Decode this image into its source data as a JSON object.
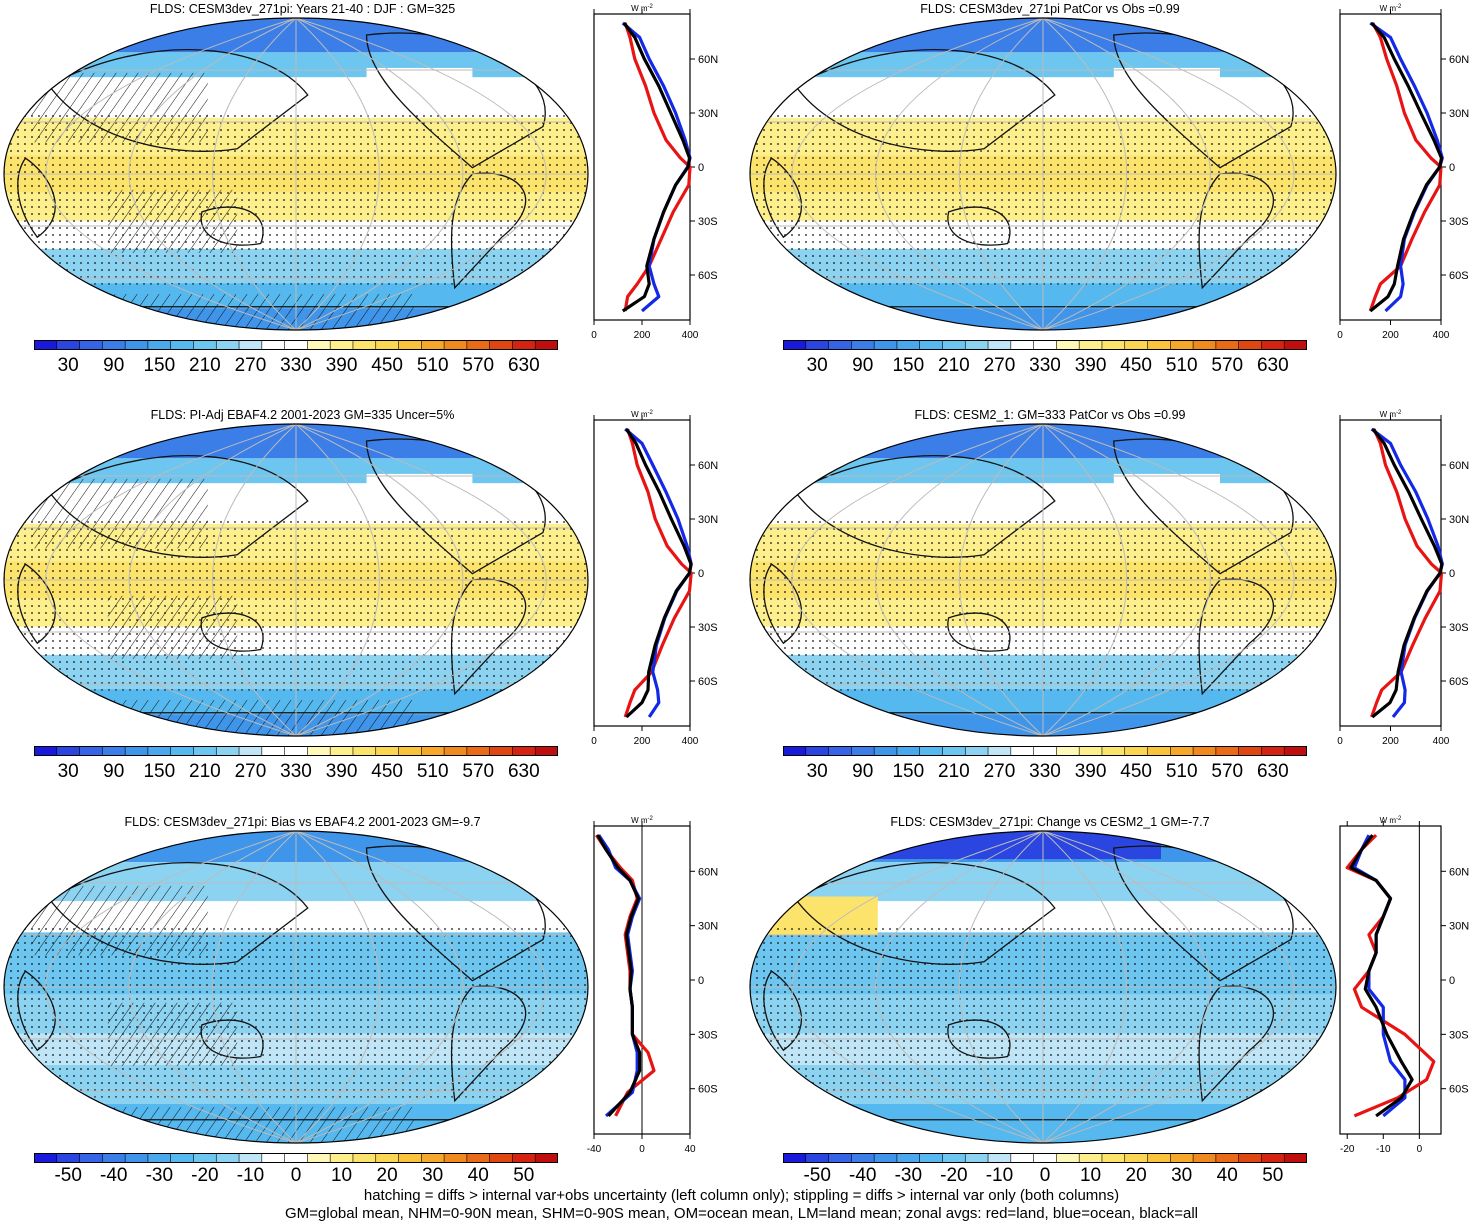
{
  "panels": [
    {
      "id": "p1",
      "title": "FLDS: CESM3dev_271pi: Years 21-40 : DJF : GM=325",
      "type": "abs",
      "hatch": true
    },
    {
      "id": "p2",
      "title": "FLDS: CESM3dev_271pi PatCor vs Obs =0.99",
      "type": "abs",
      "hatch": false
    },
    {
      "id": "p3",
      "title": "FLDS: PI-Adj EBAF4.2 2001-2023 GM=335 Uncer=5%",
      "type": "abs",
      "hatch": true
    },
    {
      "id": "p4",
      "title": "FLDS: CESM2_1: GM=333 PatCor vs Obs =0.99",
      "type": "abs",
      "hatch": false
    },
    {
      "id": "p5",
      "title": "FLDS: CESM3dev_271pi: Bias vs EBAF4.2 2001-2023 GM=-9.7",
      "type": "diff",
      "hatch": true
    },
    {
      "id": "p6",
      "title": "FLDS: CESM3dev_271pi: Change vs CESM2_1 GM=-7.7",
      "type": "diff",
      "hatch": false
    }
  ],
  "colorbars": {
    "abs_labels": [
      "30",
      "90",
      "150",
      "210",
      "270",
      "330",
      "390",
      "450",
      "510",
      "570",
      "630"
    ],
    "diff_labels": [
      "-50",
      "-40",
      "-30",
      "-20",
      "-10",
      "0",
      "10",
      "20",
      "30",
      "40",
      "50"
    ],
    "colors": [
      "#1a1adc",
      "#2a45e0",
      "#3565e6",
      "#3c7ee8",
      "#3f95ea",
      "#49a9ec",
      "#55b8ee",
      "#6cc6f0",
      "#8cd3f2",
      "#bfe5f6",
      "#ffffff",
      "#ffffff",
      "#fef9b8",
      "#fdef8c",
      "#fce46c",
      "#fbd653",
      "#f9c43b",
      "#f5a82a",
      "#f08a1f",
      "#e96a17",
      "#e04612",
      "#d42310",
      "#c00d0d"
    ]
  },
  "chart_data": [
    {
      "type": "line",
      "panel": "p1",
      "xlim": [
        0,
        400
      ],
      "xticks": [
        "0",
        "200",
        "400"
      ],
      "yticks": [
        "60N",
        "30N",
        "0",
        "30S",
        "60S"
      ],
      "unit": "W m-2",
      "series": [
        {
          "name": "red",
          "color": "#e81414",
          "x": [
            130,
            150,
            170,
            215,
            250,
            300,
            360,
            400,
            395,
            330,
            280,
            230,
            180,
            140,
            130
          ],
          "y": [
            80,
            72,
            60,
            45,
            30,
            15,
            5,
            0,
            -10,
            -25,
            -40,
            -55,
            -65,
            -72,
            -80
          ]
        },
        {
          "name": "blue",
          "color": "#1428e8",
          "x": [
            120,
            190,
            230,
            290,
            340,
            380,
            400,
            390,
            340,
            290,
            250,
            230,
            250,
            270,
            200
          ],
          "y": [
            80,
            72,
            60,
            45,
            30,
            15,
            5,
            0,
            -10,
            -25,
            -40,
            -55,
            -65,
            -72,
            -80
          ]
        },
        {
          "name": "black",
          "color": "#000000",
          "x": [
            125,
            170,
            210,
            270,
            320,
            370,
            398,
            392,
            340,
            290,
            250,
            220,
            230,
            210,
            120
          ],
          "y": [
            80,
            72,
            60,
            45,
            30,
            15,
            5,
            0,
            -10,
            -25,
            -40,
            -55,
            -65,
            -72,
            -80
          ]
        }
      ]
    },
    {
      "type": "line",
      "panel": "p2",
      "xlim": [
        0,
        400
      ],
      "xticks": [
        "0",
        "200",
        "400"
      ],
      "yticks": [
        "60N",
        "30N",
        "0",
        "30S",
        "60S"
      ],
      "unit": "W m-2",
      "series": [
        {
          "name": "red",
          "color": "#e81414",
          "x": [
            130,
            160,
            185,
            225,
            255,
            300,
            360,
            400,
            395,
            335,
            285,
            240,
            160,
            140,
            120
          ],
          "y": [
            80,
            72,
            60,
            45,
            30,
            15,
            5,
            0,
            -10,
            -25,
            -40,
            -55,
            -65,
            -72,
            -80
          ]
        },
        {
          "name": "blue",
          "color": "#1428e8",
          "x": [
            120,
            200,
            240,
            295,
            345,
            385,
            405,
            395,
            345,
            295,
            255,
            240,
            250,
            240,
            180
          ],
          "y": [
            80,
            72,
            60,
            45,
            30,
            15,
            5,
            0,
            -10,
            -25,
            -40,
            -55,
            -65,
            -72,
            -80
          ]
        },
        {
          "name": "black",
          "color": "#000000",
          "x": [
            125,
            175,
            215,
            270,
            320,
            372,
            402,
            395,
            342,
            292,
            252,
            228,
            215,
            190,
            120
          ],
          "y": [
            80,
            72,
            60,
            45,
            30,
            15,
            5,
            0,
            -10,
            -25,
            -40,
            -55,
            -65,
            -72,
            -80
          ]
        }
      ]
    },
    {
      "type": "line",
      "panel": "p3",
      "xlim": [
        0,
        400
      ],
      "xticks": [
        "0",
        "200",
        "400"
      ],
      "yticks": [
        "60N",
        "30N",
        "0",
        "30S",
        "60S"
      ],
      "unit": "W m-2",
      "series": [
        {
          "name": "red",
          "color": "#e81414",
          "x": [
            140,
            160,
            180,
            225,
            255,
            305,
            365,
            405,
            398,
            335,
            285,
            240,
            170,
            150,
            130
          ],
          "y": [
            80,
            72,
            60,
            45,
            30,
            15,
            5,
            0,
            -10,
            -25,
            -40,
            -55,
            -65,
            -72,
            -80
          ]
        },
        {
          "name": "blue",
          "color": "#1428e8",
          "x": [
            130,
            200,
            245,
            300,
            350,
            388,
            405,
            398,
            345,
            295,
            260,
            245,
            265,
            270,
            230
          ],
          "y": [
            80,
            72,
            60,
            45,
            30,
            15,
            5,
            0,
            -10,
            -25,
            -40,
            -55,
            -65,
            -72,
            -80
          ]
        },
        {
          "name": "black",
          "color": "#000000",
          "x": [
            135,
            175,
            215,
            272,
            322,
            375,
            404,
            398,
            343,
            293,
            255,
            228,
            225,
            200,
            135
          ],
          "y": [
            80,
            72,
            60,
            45,
            30,
            15,
            5,
            0,
            -10,
            -25,
            -40,
            -55,
            -65,
            -72,
            -80
          ]
        }
      ]
    },
    {
      "type": "line",
      "panel": "p4",
      "xlim": [
        0,
        400
      ],
      "xticks": [
        "0",
        "200",
        "400"
      ],
      "yticks": [
        "60N",
        "30N",
        "0",
        "30S",
        "60S"
      ],
      "unit": "W m-2",
      "series": [
        {
          "name": "red",
          "color": "#e81414",
          "x": [
            135,
            160,
            180,
            225,
            258,
            305,
            362,
            402,
            396,
            338,
            288,
            242,
            165,
            145,
            125
          ],
          "y": [
            80,
            72,
            60,
            45,
            30,
            15,
            5,
            0,
            -10,
            -25,
            -40,
            -55,
            -65,
            -72,
            -80
          ]
        },
        {
          "name": "blue",
          "color": "#1428e8",
          "x": [
            125,
            200,
            240,
            300,
            348,
            388,
            405,
            396,
            346,
            296,
            258,
            242,
            258,
            255,
            210
          ],
          "y": [
            80,
            72,
            60,
            45,
            30,
            15,
            5,
            0,
            -10,
            -25,
            -40,
            -55,
            -65,
            -72,
            -80
          ]
        },
        {
          "name": "black",
          "color": "#000000",
          "x": [
            130,
            175,
            215,
            272,
            322,
            374,
            403,
            397,
            344,
            294,
            254,
            230,
            222,
            198,
            128
          ],
          "y": [
            80,
            72,
            60,
            45,
            30,
            15,
            5,
            0,
            -10,
            -25,
            -40,
            -55,
            -65,
            -72,
            -80
          ]
        }
      ]
    },
    {
      "type": "line",
      "panel": "p5",
      "xlim": [
        -40,
        40
      ],
      "xticks": [
        "-40",
        "0",
        "40"
      ],
      "yticks": [
        "60N",
        "30N",
        "0",
        "30S",
        "60S"
      ],
      "unit": "W m-2",
      "series": [
        {
          "name": "red",
          "color": "#e81414",
          "x": [
            -38,
            -30,
            -18,
            -8,
            -4,
            -10,
            -14,
            -12,
            -10,
            -10,
            -8,
            -8,
            5,
            10,
            -12,
            -22
          ],
          "y": [
            80,
            72,
            62,
            55,
            45,
            35,
            25,
            15,
            5,
            -5,
            -15,
            -30,
            -40,
            -50,
            -62,
            -75
          ]
        },
        {
          "name": "blue",
          "color": "#1428e8",
          "x": [
            -36,
            -28,
            -22,
            -10,
            -2,
            -8,
            -12,
            -10,
            -8,
            -10,
            -8,
            -8,
            -4,
            -4,
            -8,
            -30
          ],
          "y": [
            80,
            72,
            62,
            55,
            45,
            35,
            25,
            15,
            5,
            -5,
            -15,
            -30,
            -40,
            -50,
            -62,
            -75
          ]
        },
        {
          "name": "black",
          "color": "#000000",
          "x": [
            -37,
            -30,
            -20,
            -10,
            -3,
            -9,
            -13,
            -11,
            -9,
            -10,
            -8,
            -8,
            -2,
            -2,
            -10,
            -28
          ],
          "y": [
            80,
            72,
            62,
            55,
            45,
            35,
            25,
            15,
            5,
            -5,
            -15,
            -30,
            -40,
            -50,
            -62,
            -75
          ]
        }
      ]
    },
    {
      "type": "line",
      "panel": "p6",
      "xlim": [
        -22,
        6
      ],
      "xticks": [
        "-20",
        "-10",
        "0"
      ],
      "yticks": [
        "60N",
        "30N",
        "0",
        "30S",
        "60S"
      ],
      "unit": "W m-2",
      "series": [
        {
          "name": "red",
          "color": "#e81414",
          "x": [
            -12,
            -16,
            -20,
            -12,
            -8,
            -10,
            -14,
            -12,
            -14,
            -18,
            -16,
            -4,
            4,
            2,
            -6,
            -18
          ],
          "y": [
            80,
            72,
            62,
            55,
            45,
            35,
            25,
            15,
            5,
            -5,
            -15,
            -30,
            -45,
            -55,
            -65,
            -75
          ]
        },
        {
          "name": "blue",
          "color": "#1428e8",
          "x": [
            -14,
            -16,
            -18,
            -12,
            -8,
            -10,
            -12,
            -12,
            -14,
            -14,
            -10,
            -10,
            -8,
            -4,
            -4,
            -10
          ],
          "y": [
            80,
            72,
            62,
            55,
            45,
            35,
            25,
            15,
            5,
            -5,
            -15,
            -30,
            -45,
            -55,
            -65,
            -75
          ]
        },
        {
          "name": "black",
          "color": "#000000",
          "x": [
            -13,
            -16,
            -19,
            -12,
            -8,
            -10,
            -12,
            -12,
            -14,
            -15,
            -12,
            -9,
            -5,
            -2,
            -5,
            -12
          ],
          "y": [
            80,
            72,
            62,
            55,
            45,
            35,
            25,
            15,
            5,
            -5,
            -15,
            -30,
            -45,
            -55,
            -65,
            -75
          ]
        }
      ]
    }
  ],
  "footer": {
    "line1": "hatching = diffs > internal var+obs uncertainty (left column only); stippling = diffs > internal var only (both columns)",
    "line2": "GM=global mean, NHM=0-90N mean, SHM=0-90S mean, OM=ocean mean, LM=land mean; zonal avgs: red=land, blue=ocean, black=all"
  }
}
